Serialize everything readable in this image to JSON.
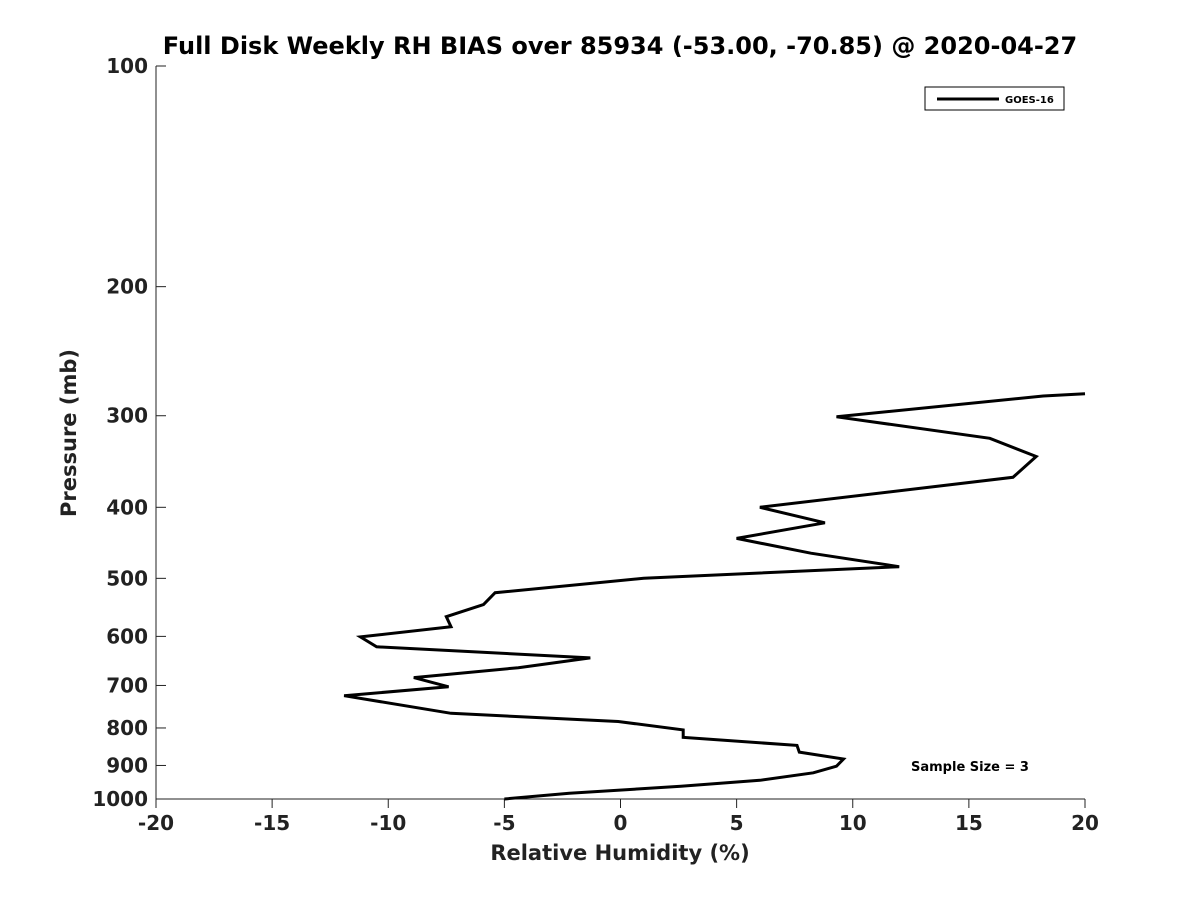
{
  "chart_data": {
    "type": "line",
    "title": "Full Disk Weekly RH BIAS over 85934 (-53.00, -70.85) @ 2020-04-27",
    "xlabel": "Relative Humidity (%)",
    "ylabel": "Pressure (mb)",
    "xlim": [
      -20,
      20
    ],
    "ylim": [
      100,
      1000
    ],
    "y_scale": "log",
    "y_reversed": true,
    "grid": false,
    "x_ticks": [
      -20,
      -15,
      -10,
      -5,
      0,
      5,
      10,
      15,
      20
    ],
    "x_tick_labels": [
      "-20",
      "-15",
      "-10",
      "-5",
      "0",
      "5",
      "10",
      "15",
      "20"
    ],
    "y_ticks": [
      100,
      200,
      300,
      400,
      500,
      600,
      700,
      800,
      900,
      1000
    ],
    "y_tick_labels": [
      "100",
      "200",
      "300",
      "400",
      "500",
      "600",
      "700",
      "800",
      "900",
      "1000"
    ],
    "legend": {
      "position": "top-right",
      "entries": [
        "GOES-16"
      ]
    },
    "annotation": "Sample Size = 3",
    "series": [
      {
        "name": "GOES-16",
        "color": "#000000",
        "points": [
          {
            "rh": 20.0,
            "p": 280
          },
          {
            "rh": 18.2,
            "p": 282
          },
          {
            "rh": 9.3,
            "p": 301
          },
          {
            "rh": 15.9,
            "p": 322
          },
          {
            "rh": 17.9,
            "p": 341
          },
          {
            "rh": 16.9,
            "p": 364
          },
          {
            "rh": 6.0,
            "p": 400
          },
          {
            "rh": 8.8,
            "p": 420
          },
          {
            "rh": 5.0,
            "p": 441
          },
          {
            "rh": 8.2,
            "p": 462
          },
          {
            "rh": 12.0,
            "p": 482
          },
          {
            "rh": 1.0,
            "p": 500
          },
          {
            "rh": -5.4,
            "p": 523
          },
          {
            "rh": -5.9,
            "p": 543
          },
          {
            "rh": -7.5,
            "p": 564
          },
          {
            "rh": -7.3,
            "p": 582
          },
          {
            "rh": -11.2,
            "p": 601
          },
          {
            "rh": -10.5,
            "p": 620
          },
          {
            "rh": -1.3,
            "p": 642
          },
          {
            "rh": -4.4,
            "p": 662
          },
          {
            "rh": -8.9,
            "p": 683
          },
          {
            "rh": -7.4,
            "p": 703
          },
          {
            "rh": -11.9,
            "p": 723
          },
          {
            "rh": -7.3,
            "p": 764
          },
          {
            "rh": -0.1,
            "p": 784
          },
          {
            "rh": 2.7,
            "p": 805
          },
          {
            "rh": 2.7,
            "p": 824
          },
          {
            "rh": 7.6,
            "p": 845
          },
          {
            "rh": 7.7,
            "p": 863
          },
          {
            "rh": 9.6,
            "p": 882
          },
          {
            "rh": 9.3,
            "p": 902
          },
          {
            "rh": 8.3,
            "p": 921
          },
          {
            "rh": 6.0,
            "p": 943
          },
          {
            "rh": 2.6,
            "p": 961
          },
          {
            "rh": -2.2,
            "p": 982
          },
          {
            "rh": -5.0,
            "p": 1000
          }
        ]
      }
    ]
  }
}
